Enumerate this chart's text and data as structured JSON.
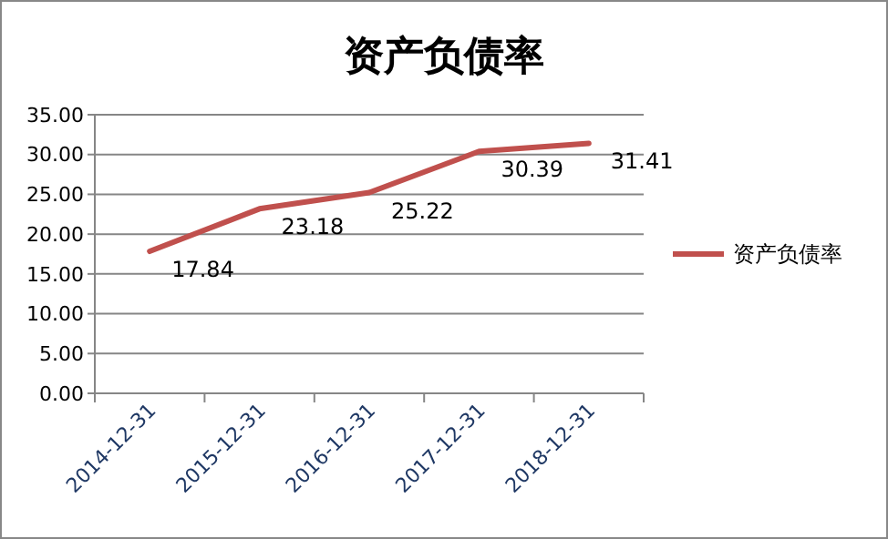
{
  "chart_data": {
    "type": "line",
    "title": "资产负债率",
    "categories": [
      "2014-12-31",
      "2015-12-31",
      "2016-12-31",
      "2017-12-31",
      "2018-12-31"
    ],
    "series": [
      {
        "name": "资产负债率",
        "color": "#c0504d",
        "values": [
          17.84,
          23.18,
          25.22,
          30.39,
          31.41
        ]
      }
    ],
    "ylim": [
      0,
      35
    ],
    "yticks": [
      {
        "value": 0,
        "label": "0.00"
      },
      {
        "value": 5,
        "label": "5.00"
      },
      {
        "value": 10,
        "label": "10.00"
      },
      {
        "value": 15,
        "label": "15.00"
      },
      {
        "value": 20,
        "label": "20.00"
      },
      {
        "value": 25,
        "label": "25.00"
      },
      {
        "value": 30,
        "label": "30.00"
      },
      {
        "value": 35,
        "label": "35.00"
      }
    ],
    "grid": "y",
    "legend": "right",
    "data_labels": true,
    "marker": "none",
    "line_style": "solid"
  }
}
